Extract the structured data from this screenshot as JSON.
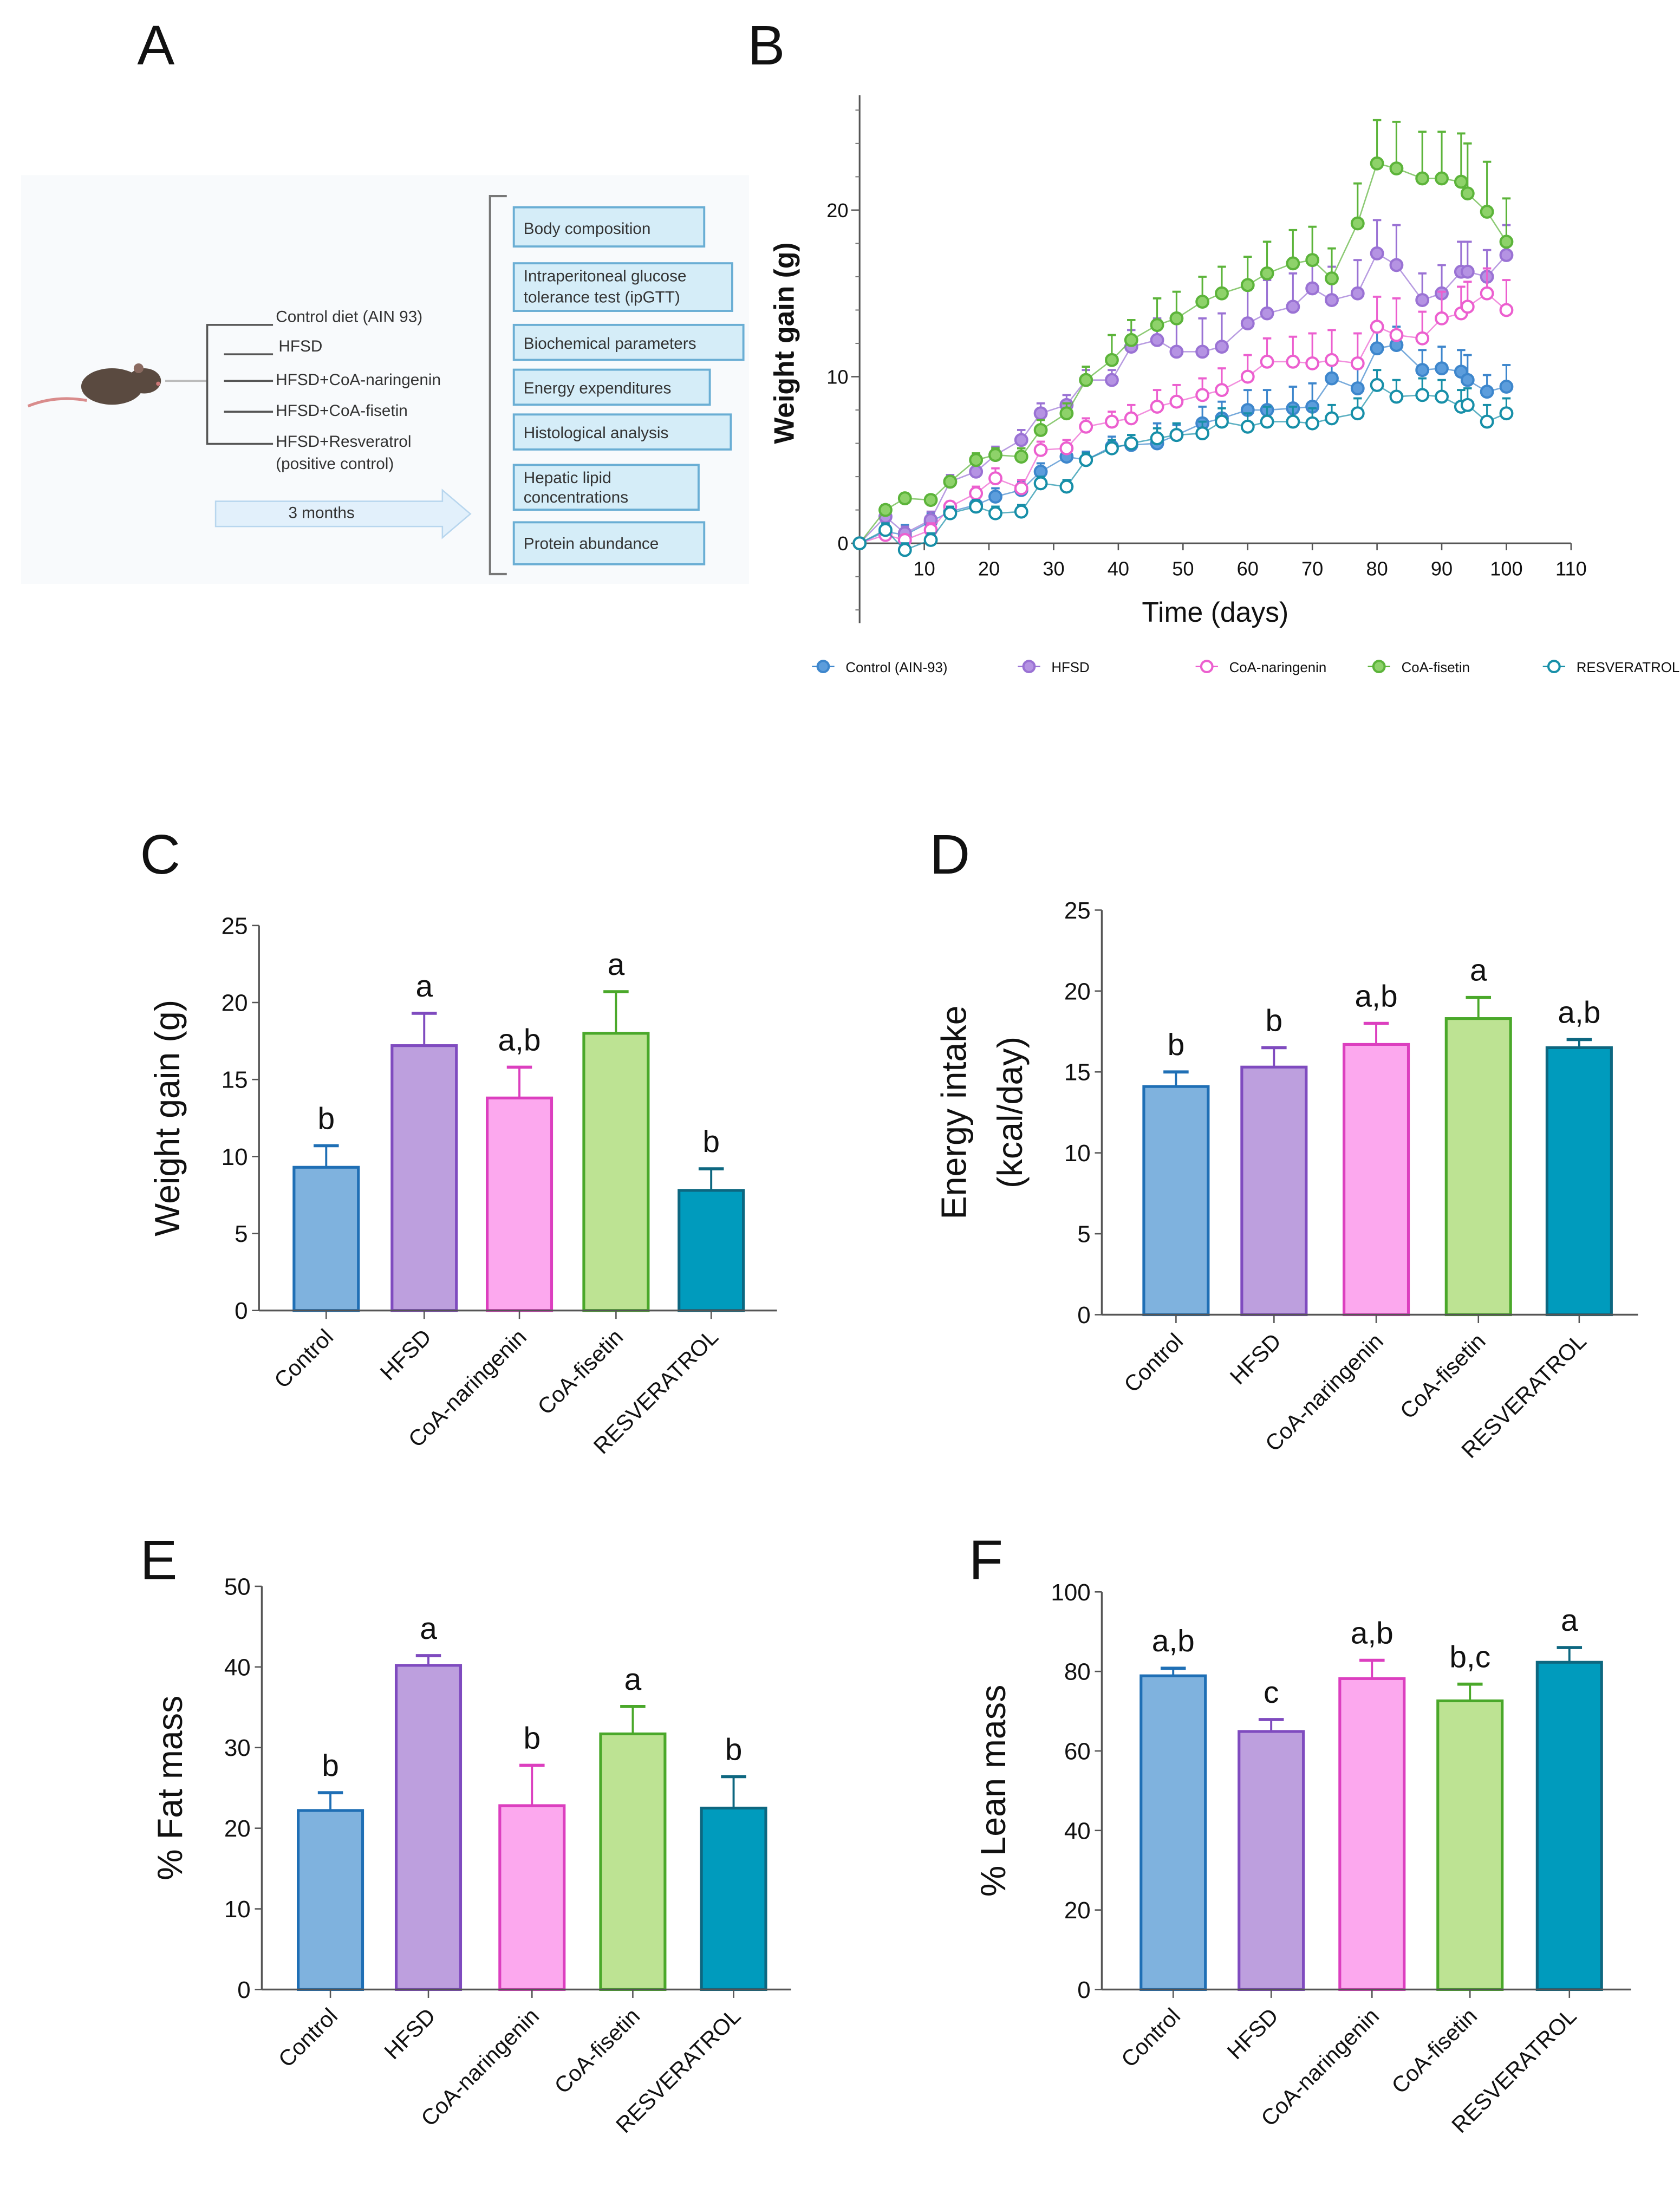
{
  "panel_labels": {
    "a": "A",
    "b": "B",
    "c": "C",
    "d": "D",
    "e": "E",
    "f": "F"
  },
  "diagram": {
    "groups": [
      "Control diet (AIN 93)",
      "HFSD",
      "HFSD+CoA-naringenin",
      "HFSD+CoA-fisetin",
      "HFSD+Resveratrol",
      "(positive control)"
    ],
    "duration": "3 months",
    "analyses": [
      "Body composition",
      "Intraperitoneal glucose",
      "tolerance test (ipGTT)",
      "Biochemical parameters",
      "Energy expenditures",
      "Histological analysis",
      "Hepatic lipid",
      "concentrations",
      "Protein abundance"
    ],
    "colors": {
      "box_fill": "#d5edf8",
      "box_stroke": "#6aaed4",
      "arrow": "#e2f0fb",
      "mouse": "#5a4a40"
    }
  },
  "chart_data": [
    {
      "panel": "B",
      "type": "line",
      "xlabel": "Time (days)",
      "ylabel": "Weight gain (g)",
      "xlim": [
        0,
        110
      ],
      "ylim": [
        -5,
        27
      ],
      "xticks": [
        10,
        20,
        30,
        40,
        50,
        60,
        70,
        80,
        90,
        100,
        110
      ],
      "yticks": [
        0,
        10,
        20
      ],
      "legend_position": "bottom",
      "x": [
        0,
        4,
        7,
        11,
        14,
        18,
        21,
        25,
        28,
        32,
        35,
        39,
        42,
        46,
        49,
        53,
        56,
        60,
        63,
        67,
        70,
        73,
        77,
        80,
        83,
        87,
        90,
        93,
        94,
        97,
        100
      ],
      "series": [
        {
          "name": "Control (AIN-93)",
          "color": "#3d86cc",
          "fill": "#5c9ddc",
          "open": false,
          "values": [
            0,
            0.7,
            0.5,
            1.3,
            1.9,
            2.3,
            2.8,
            3.2,
            4.3,
            5.2,
            5.0,
            5.8,
            5.9,
            6.0,
            6.5,
            7.2,
            7.5,
            8.0,
            8.0,
            8.1,
            8.2,
            9.9,
            9.3,
            11.7,
            11.9,
            10.4,
            10.5,
            10.3,
            9.8,
            9.1,
            9.4
          ],
          "err": [
            0,
            0.5,
            0.6,
            0.5,
            0.4,
            0.4,
            0.5,
            0.5,
            0.5,
            0.5,
            0.5,
            0.6,
            0.6,
            1.2,
            0.6,
            1.0,
            1.0,
            1.2,
            1.2,
            1.3,
            1.4,
            0.8,
            1.2,
            1.0,
            1.1,
            1.2,
            1.3,
            1.3,
            1.5,
            1.0,
            1.3
          ]
        },
        {
          "name": "HFSD",
          "color": "#9a72d4",
          "fill": "#b593e3",
          "open": false,
          "values": [
            0,
            1.6,
            0.6,
            1.4,
            3.7,
            4.3,
            5.3,
            6.2,
            7.8,
            8.3,
            9.8,
            9.8,
            11.8,
            12.2,
            11.5,
            11.5,
            11.8,
            13.2,
            13.8,
            14.2,
            15.3,
            14.6,
            15.0,
            17.4,
            16.7,
            14.6,
            15.0,
            16.3,
            16.3,
            16.0,
            17.3
          ],
          "err": [
            0,
            0.3,
            0.4,
            0.5,
            0.4,
            0.5,
            0.5,
            0.6,
            0.6,
            0.6,
            0.6,
            0.6,
            1.0,
            1.3,
            2.0,
            2.0,
            2.0,
            2.0,
            2.0,
            2.0,
            2.0,
            2.0,
            2.0,
            2.0,
            2.4,
            1.6,
            1.7,
            1.8,
            1.8,
            1.6,
            1.8
          ]
        },
        {
          "name": "CoA-naringenin",
          "color": "#ec5fcf",
          "fill": "#ffffff",
          "open": true,
          "values": [
            0,
            0.5,
            0.2,
            0.8,
            2.2,
            3.0,
            3.9,
            3.3,
            5.6,
            5.7,
            7.0,
            7.3,
            7.5,
            8.2,
            8.5,
            8.9,
            9.2,
            10.0,
            10.9,
            10.9,
            10.8,
            11.0,
            10.8,
            13.0,
            12.5,
            12.3,
            13.5,
            13.8,
            14.2,
            15.0,
            14.0
          ],
          "err": [
            0,
            0.3,
            0.3,
            0.4,
            0.3,
            0.4,
            0.6,
            0.5,
            0.5,
            0.5,
            0.5,
            0.6,
            0.8,
            1.0,
            1.0,
            1.0,
            1.3,
            1.3,
            1.4,
            1.5,
            1.8,
            1.8,
            1.8,
            1.8,
            2.2,
            1.6,
            1.6,
            1.6,
            1.5,
            1.5,
            1.8
          ]
        },
        {
          "name": "CoA-fisetin",
          "color": "#5cb43a",
          "fill": "#8ed26a",
          "open": false,
          "values": [
            0,
            2.0,
            2.7,
            2.6,
            3.7,
            5.0,
            5.3,
            5.2,
            6.8,
            7.8,
            9.8,
            11.0,
            12.2,
            13.1,
            13.5,
            14.5,
            15.0,
            15.5,
            16.2,
            16.8,
            17.0,
            15.9,
            19.2,
            22.8,
            22.5,
            21.9,
            21.9,
            21.7,
            21.0,
            19.9,
            18.1
          ],
          "err": [
            0,
            0.3,
            0.3,
            0.3,
            0.3,
            0.4,
            0.4,
            0.5,
            0.6,
            0.6,
            0.8,
            1.5,
            1.2,
            1.6,
            1.6,
            1.5,
            1.6,
            1.7,
            1.9,
            2.0,
            2.0,
            1.8,
            2.4,
            2.6,
            2.8,
            2.8,
            2.8,
            2.9,
            3.0,
            3.0,
            2.6
          ]
        },
        {
          "name": "RESVERATROL",
          "color": "#178fa8",
          "fill": "#ffffff",
          "open": true,
          "values": [
            0,
            0.8,
            -0.4,
            0.2,
            1.8,
            2.2,
            1.8,
            1.9,
            3.6,
            3.4,
            5.0,
            5.7,
            6.0,
            6.3,
            6.5,
            6.6,
            7.3,
            7.0,
            7.3,
            7.3,
            7.2,
            7.5,
            7.8,
            9.5,
            8.8,
            8.9,
            8.8,
            8.2,
            8.3,
            7.3,
            7.8
          ],
          "err": [
            0,
            0.4,
            0.4,
            0.4,
            0.4,
            0.4,
            0.4,
            0.4,
            0.4,
            0.4,
            0.4,
            0.5,
            0.5,
            0.6,
            0.7,
            0.7,
            0.8,
            0.8,
            0.9,
            0.9,
            0.9,
            0.8,
            0.9,
            0.9,
            1.0,
            1.0,
            1.0,
            1.0,
            1.0,
            1.0,
            0.9
          ]
        }
      ]
    },
    {
      "panel": "C",
      "type": "bar",
      "categories": [
        "Control",
        "HFSD",
        "CoA-naringenin",
        "CoA-fisetin",
        "RESVERATROL"
      ],
      "values": [
        9.3,
        17.2,
        13.8,
        18.0,
        7.8
      ],
      "err": [
        1.4,
        2.1,
        2.0,
        2.7,
        1.4
      ],
      "letters": [
        "b",
        "a",
        "a,b",
        "a",
        "b"
      ],
      "ylabel": [
        "Weight gain (g)"
      ],
      "ylim": [
        0,
        25
      ],
      "yticks": [
        0,
        5,
        10,
        15,
        20,
        25
      ]
    },
    {
      "panel": "D",
      "type": "bar",
      "categories": [
        "Control",
        "HFSD",
        "CoA-naringenin",
        "CoA-fisetin",
        "RESVERATROL"
      ],
      "values": [
        14.1,
        15.3,
        16.7,
        18.3,
        16.5
      ],
      "err": [
        0.9,
        1.2,
        1.3,
        1.3,
        0.5
      ],
      "letters": [
        "b",
        "b",
        "a,b",
        "a",
        "a,b"
      ],
      "ylabel": [
        "Energy intake",
        "(kcal/day)"
      ],
      "ylim": [
        0,
        25
      ],
      "yticks": [
        0,
        5,
        10,
        15,
        20,
        25
      ]
    },
    {
      "panel": "E",
      "type": "bar",
      "categories": [
        "Control",
        "HFSD",
        "CoA-naringenin",
        "CoA-fisetin",
        "RESVERATROL"
      ],
      "values": [
        22.2,
        40.2,
        22.8,
        31.7,
        22.5
      ],
      "err": [
        2.2,
        1.2,
        5.0,
        3.4,
        3.9
      ],
      "letters": [
        "b",
        "a",
        "b",
        "a",
        "b"
      ],
      "ylabel": [
        "% Fat mass"
      ],
      "ylim": [
        0,
        50
      ],
      "yticks": [
        0,
        10,
        20,
        30,
        40,
        50
      ]
    },
    {
      "panel": "F",
      "type": "bar",
      "categories": [
        "Control",
        "HFSD",
        "CoA-naringenin",
        "CoA-fisetin",
        "RESVERATROL"
      ],
      "values": [
        78.9,
        64.9,
        78.2,
        72.6,
        82.3
      ],
      "err": [
        1.9,
        3.0,
        4.6,
        4.2,
        3.7
      ],
      "letters": [
        "a,b",
        "c",
        "a,b",
        "b,c",
        "a"
      ],
      "ylabel": [
        "% Lean mass"
      ],
      "ylim": [
        0,
        100
      ],
      "yticks": [
        0,
        20,
        40,
        60,
        80,
        100
      ]
    }
  ],
  "bar_colors": {
    "fill": [
      "#7fb2de",
      "#bd9fde",
      "#fca8ee",
      "#bde393",
      "#009bbd"
    ],
    "stroke": [
      "#1f6fb5",
      "#7f4bbf",
      "#dc3fbf",
      "#4aa82a",
      "#0d6780"
    ]
  }
}
